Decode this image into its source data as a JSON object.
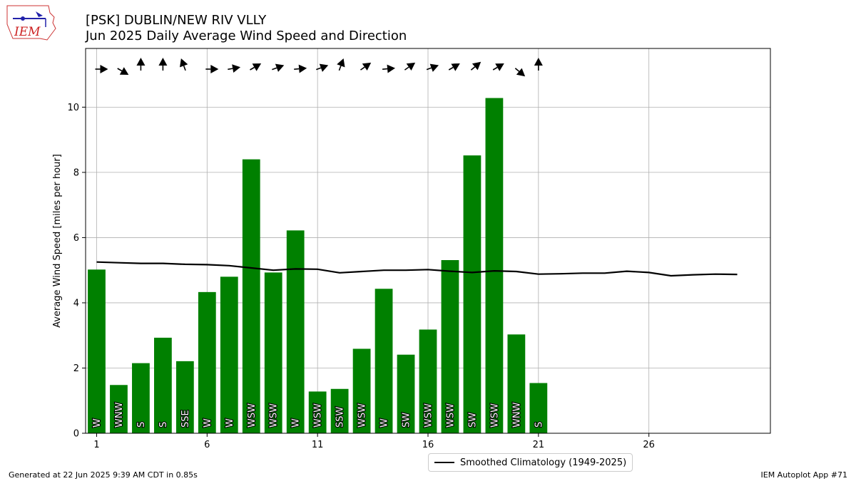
{
  "header": {
    "logo_text": "IEM",
    "title_line1": "[PSK] DUBLIN/NEW RIV VLLY",
    "title_line2": "Jun 2025 Daily Average Wind Speed and Direction"
  },
  "footer": {
    "generated": "Generated at 22 Jun 2025 9:39 AM CDT in 0.85s",
    "app": "IEM Autoplot App #71"
  },
  "colors": {
    "bar": "#008000",
    "clim": "#000000",
    "grid": "#b0b0b0"
  },
  "chart_data": {
    "type": "bar",
    "ylabel": "Average Wind Speed [miles per hour]",
    "xlim": [
      0.5,
      31.5
    ],
    "ylim": [
      0,
      11.8
    ],
    "xticks": [
      1,
      6,
      11,
      16,
      21,
      26
    ],
    "yticks": [
      0,
      2,
      4,
      6,
      8,
      10
    ],
    "grid": true,
    "legend_position": "bottom-center",
    "days": [
      1,
      2,
      3,
      4,
      5,
      6,
      7,
      8,
      9,
      10,
      11,
      12,
      13,
      14,
      15,
      16,
      17,
      18,
      19,
      20,
      21
    ],
    "values": [
      5.02,
      1.48,
      2.15,
      2.93,
      2.21,
      4.33,
      4.8,
      8.4,
      4.93,
      6.22,
      1.28,
      1.36,
      2.59,
      4.43,
      2.41,
      3.18,
      5.31,
      8.52,
      10.28,
      3.03,
      1.54
    ],
    "directions": [
      "W",
      "WNW",
      "S",
      "S",
      "SSE",
      "W",
      "W",
      "WSW",
      "WSW",
      "W",
      "WSW",
      "SSW",
      "WSW",
      "W",
      "SW",
      "WSW",
      "WSW",
      "SW",
      "WSW",
      "WNW",
      "S"
    ],
    "arrow_bearings": [
      90,
      120,
      0,
      0,
      -20,
      90,
      80,
      60,
      70,
      85,
      70,
      20,
      55,
      85,
      55,
      70,
      60,
      50,
      60,
      130,
      0
    ],
    "series": [
      {
        "name": "Smoothed Climatology (1949-2025)",
        "x": [
          1,
          2,
          3,
          4,
          5,
          6,
          7,
          8,
          9,
          10,
          11,
          12,
          13,
          14,
          15,
          16,
          17,
          18,
          19,
          20,
          21,
          22,
          23,
          24,
          25,
          26,
          27,
          28,
          29,
          30
        ],
        "values": [
          5.25,
          5.23,
          5.21,
          5.21,
          5.18,
          5.17,
          5.14,
          5.07,
          5.0,
          5.04,
          5.03,
          4.92,
          4.96,
          5.0,
          5.0,
          5.02,
          4.97,
          4.93,
          4.98,
          4.96,
          4.88,
          4.89,
          4.91,
          4.91,
          4.97,
          4.93,
          4.83,
          4.86,
          4.88,
          4.87
        ]
      }
    ]
  }
}
